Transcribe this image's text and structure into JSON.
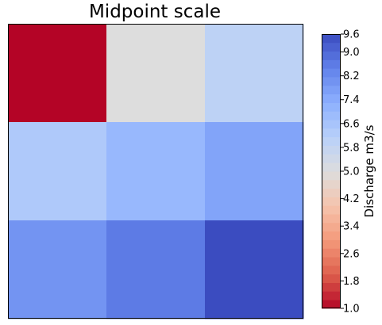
{
  "chart_data": {
    "type": "heatmap",
    "title": "Midpoint scale",
    "rows": 3,
    "cols": 3,
    "values": [
      [
        1.0,
        5.0,
        6.0
      ],
      [
        6.4,
        7.0,
        7.6
      ],
      [
        8.0,
        8.6,
        9.6
      ]
    ],
    "colorbar": {
      "label": "Discharge m3/s",
      "colormap": "coolwarm",
      "vmin": 1.0,
      "midpoint": 5.0,
      "vmax": 9.6,
      "ticks": [
        "1.0",
        "1.8",
        "2.6",
        "3.4",
        "4.2",
        "5.0",
        "5.8",
        "6.6",
        "7.4",
        "8.2",
        "9.0",
        "9.6"
      ],
      "lower_levels": 16,
      "upper_levels": 16
    },
    "xticks": [],
    "yticks": []
  }
}
